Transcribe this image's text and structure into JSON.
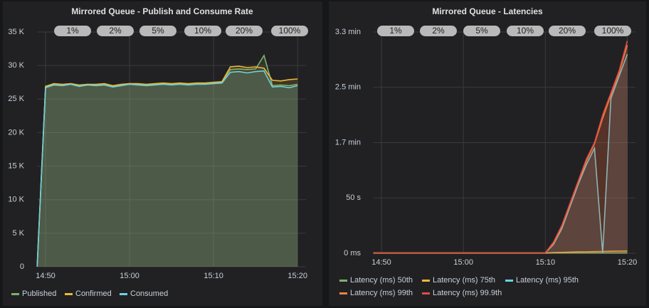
{
  "chart_data": [
    {
      "type": "line",
      "title": "Mirrored Queue - Publish and Consume Rate",
      "buttons": [
        "1%",
        "2%",
        "5%",
        "10%",
        "20%",
        "100%"
      ],
      "x": [
        "14:49",
        "14:50",
        "14:51",
        "14:52",
        "14:53",
        "14:54",
        "14:55",
        "14:56",
        "14:57",
        "14:58",
        "14:59",
        "15:00",
        "15:01",
        "15:02",
        "15:03",
        "15:04",
        "15:05",
        "15:06",
        "15:07",
        "15:08",
        "15:09",
        "15:10",
        "15:11",
        "15:12",
        "15:13",
        "15:14",
        "15:15",
        "15:16",
        "15:17",
        "15:18",
        "15:19",
        "15:20"
      ],
      "xlim": [
        "14:49",
        "15:21"
      ],
      "xticks": [
        "14:50",
        "15:00",
        "15:10",
        "15:20"
      ],
      "ylim": [
        0,
        35000
      ],
      "yticks": [
        0,
        {
          "value": 5000,
          "label": "5 K"
        },
        {
          "value": 10000,
          "label": "10 K"
        },
        {
          "value": 15000,
          "label": "15 K"
        },
        {
          "value": 20000,
          "label": "20 K"
        },
        {
          "value": 25000,
          "label": "25 K"
        },
        {
          "value": 30000,
          "label": "30 K"
        },
        {
          "value": 35000,
          "label": "35 K"
        }
      ],
      "grid": true,
      "fill": true,
      "series": [
        {
          "name": "Published",
          "color": "#7eb26d",
          "values": [
            0,
            26800,
            27200,
            27100,
            27300,
            27000,
            27200,
            27100,
            27200,
            26900,
            27100,
            27300,
            27200,
            27100,
            27200,
            27300,
            27200,
            27300,
            27200,
            27300,
            27300,
            27400,
            27500,
            29400,
            29500,
            29400,
            29500,
            31500,
            27000,
            27100,
            27000,
            27200
          ]
        },
        {
          "name": "Confirmed",
          "color": "#eab839",
          "values": [
            0,
            26900,
            27300,
            27200,
            27300,
            27100,
            27200,
            27200,
            27300,
            27000,
            27200,
            27300,
            27300,
            27200,
            27300,
            27400,
            27300,
            27400,
            27300,
            27400,
            27400,
            27500,
            27600,
            29800,
            29900,
            29700,
            29800,
            29600,
            27800,
            27700,
            27900,
            28000
          ]
        },
        {
          "name": "Consumed",
          "color": "#6ed0e0",
          "values": [
            0,
            26700,
            27100,
            27000,
            27200,
            26900,
            27100,
            27000,
            27100,
            26800,
            27000,
            27200,
            27100,
            27000,
            27100,
            27200,
            27100,
            27200,
            27100,
            27200,
            27200,
            27300,
            27400,
            29000,
            29100,
            28900,
            29100,
            29200,
            26800,
            26900,
            26700,
            27000
          ]
        }
      ]
    },
    {
      "type": "line",
      "title": "Mirrored Queue - Latencies",
      "buttons": [
        "1%",
        "2%",
        "5%",
        "10%",
        "20%",
        "100%"
      ],
      "x": [
        "14:49",
        "14:50",
        "14:51",
        "14:52",
        "14:53",
        "14:54",
        "14:55",
        "14:56",
        "14:57",
        "14:58",
        "14:59",
        "15:00",
        "15:01",
        "15:02",
        "15:03",
        "15:04",
        "15:05",
        "15:06",
        "15:07",
        "15:08",
        "15:09",
        "15:10",
        "15:11",
        "15:12",
        "15:13",
        "15:14",
        "15:15",
        "15:16",
        "15:17",
        "15:18",
        "15:19",
        "15:20"
      ],
      "xlim": [
        "14:49",
        "15:21"
      ],
      "xticks": [
        "14:50",
        "15:00",
        "15:10",
        "15:20"
      ],
      "ylim": [
        0,
        200000
      ],
      "yticks": [
        {
          "value": 0,
          "label": "0 ms"
        },
        {
          "value": 50000,
          "label": "50 s"
        },
        {
          "value": 100000,
          "label": "1.7 min"
        },
        {
          "value": 150000,
          "label": "2.5 min"
        },
        {
          "value": 200000,
          "label": "3.3 min"
        }
      ],
      "grid": true,
      "fill": true,
      "series": [
        {
          "name": "Latency (ms) 50th",
          "color": "#7eb26d",
          "values": [
            100,
            100,
            100,
            100,
            100,
            100,
            100,
            100,
            100,
            100,
            100,
            100,
            100,
            100,
            100,
            100,
            100,
            100,
            100,
            100,
            100,
            100,
            200,
            200,
            200,
            200,
            200,
            200,
            200,
            200,
            200,
            200
          ]
        },
        {
          "name": "Latency (ms) 75th",
          "color": "#eab839",
          "values": [
            150,
            150,
            150,
            150,
            150,
            150,
            150,
            150,
            150,
            150,
            150,
            150,
            150,
            150,
            150,
            150,
            150,
            150,
            150,
            150,
            150,
            150,
            600,
            800,
            1000,
            1200,
            1300,
            1500,
            1600,
            1800,
            1900,
            2000
          ]
        },
        {
          "name": "Latency (ms) 95th",
          "color": "#6ed0e0",
          "values": [
            200,
            200,
            200,
            200,
            200,
            200,
            200,
            200,
            200,
            200,
            200,
            200,
            200,
            200,
            200,
            200,
            200,
            200,
            200,
            200,
            200,
            200,
            8000,
            22000,
            42000,
            62000,
            80000,
            95000,
            0,
            140000,
            160000,
            180000
          ]
        },
        {
          "name": "Latency (ms) 99th",
          "color": "#ef843c",
          "values": [
            250,
            250,
            250,
            250,
            250,
            250,
            250,
            250,
            250,
            250,
            250,
            250,
            250,
            250,
            250,
            250,
            250,
            250,
            250,
            250,
            250,
            250,
            9000,
            24000,
            44000,
            64000,
            83000,
            99000,
            122000,
            143000,
            163000,
            188000
          ]
        },
        {
          "name": "Latency (ms) 99.9th",
          "color": "#e24d42",
          "values": [
            300,
            300,
            300,
            300,
            300,
            300,
            300,
            300,
            300,
            300,
            300,
            300,
            300,
            300,
            300,
            300,
            300,
            300,
            300,
            300,
            300,
            300,
            10000,
            25000,
            45000,
            65000,
            85000,
            100000,
            125000,
            145000,
            165000,
            192000
          ]
        }
      ]
    }
  ]
}
